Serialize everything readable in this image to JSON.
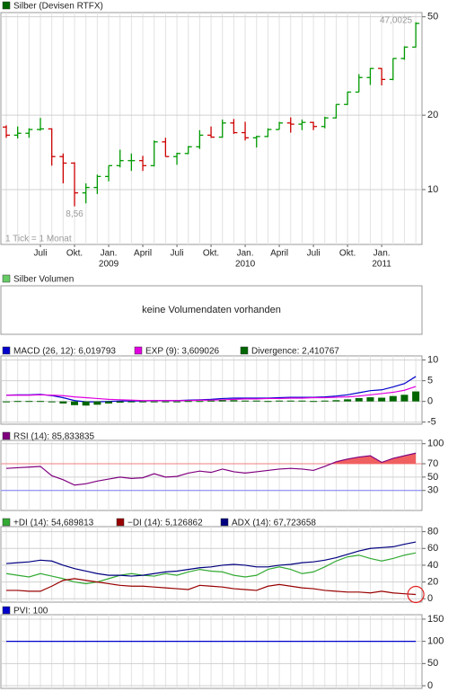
{
  "chart_data": [
    {
      "type": "ohlc",
      "name": "Silber (Devisen RTFX)",
      "color": "#006600",
      "up_color": "#009900",
      "down_color": "#cc0000",
      "categories": [
        null,
        null,
        null,
        "Juli",
        null,
        null,
        "Okt.",
        null,
        null,
        "Jan.",
        null,
        null,
        "April",
        null,
        null,
        "Juli",
        null,
        null,
        "Okt.",
        null,
        null,
        "Jan.",
        null,
        null,
        "April",
        null,
        null,
        "Juli",
        null,
        null,
        "Okt.",
        null,
        null,
        "Jan.",
        null,
        null,
        null
      ],
      "years": [
        null,
        null,
        null,
        null,
        null,
        null,
        null,
        null,
        null,
        "2009",
        null,
        null,
        null,
        null,
        null,
        null,
        null,
        null,
        null,
        null,
        null,
        "2010",
        null,
        null,
        null,
        null,
        null,
        null,
        null,
        null,
        null,
        null,
        null,
        "2011",
        null,
        null,
        null
      ],
      "open": [
        17.9,
        16.6,
        16.9,
        17.5,
        17.6,
        13.6,
        12.8,
        9.7,
        10.2,
        11.3,
        12.5,
        13.1,
        13.1,
        12.5,
        15.6,
        13.6,
        14.0,
        14.9,
        16.6,
        16.3,
        18.6,
        17.0,
        16.2,
        16.4,
        17.5,
        18.6,
        18.4,
        18.7,
        18.0,
        19.5,
        22.1,
        24.8,
        28.4,
        30.9,
        27.9,
        33.9,
        37.7
      ],
      "high": [
        18.2,
        18.0,
        17.7,
        19.5,
        17.7,
        14.0,
        12.9,
        10.6,
        11.5,
        12.5,
        14.5,
        14.0,
        13.7,
        15.8,
        16.2,
        14.1,
        15.0,
        17.4,
        18.0,
        19.2,
        19.3,
        18.8,
        16.5,
        17.7,
        18.8,
        19.6,
        19.2,
        18.8,
        19.7,
        22.1,
        24.9,
        29.3,
        31.0,
        31.0,
        34.0,
        38.0,
        47.5
      ],
      "low": [
        16.2,
        16.1,
        16.2,
        17.3,
        12.5,
        10.6,
        8.56,
        8.8,
        9.6,
        10.8,
        12.3,
        11.9,
        11.9,
        12.4,
        13.6,
        12.6,
        13.9,
        14.6,
        16.2,
        16.2,
        16.8,
        15.8,
        14.8,
        16.3,
        17.5,
        17.0,
        17.4,
        17.4,
        17.7,
        19.4,
        22.0,
        24.8,
        26.5,
        26.4,
        27.7,
        33.5,
        37.6
      ],
      "close": [
        16.6,
        16.9,
        17.5,
        17.6,
        13.6,
        12.8,
        9.7,
        10.2,
        11.3,
        12.5,
        13.1,
        13.1,
        12.5,
        15.6,
        13.6,
        14.0,
        14.9,
        16.6,
        16.3,
        18.6,
        17.0,
        16.2,
        16.4,
        17.5,
        18.6,
        18.4,
        18.7,
        18.0,
        19.5,
        22.1,
        24.8,
        28.4,
        30.9,
        27.9,
        33.9,
        37.7,
        47.0025
      ],
      "log_scale": true,
      "ylim": [
        6,
        52
      ],
      "yticks": [
        10,
        20,
        50
      ],
      "grid": true,
      "high_label": "47,0025",
      "low_label": "8,56",
      "tick_note": "1 Tick = 1 Monat"
    },
    {
      "type": "empty",
      "name": "Silber Volumen",
      "color": "#66cc66",
      "message": "keine Volumendaten vorhanden"
    },
    {
      "type": "line",
      "ylim": [
        -5.5,
        11
      ],
      "yticks": [
        10,
        5,
        0,
        -5
      ],
      "grid": true,
      "series": [
        {
          "name": "MACD (26, 12): 6,019793",
          "color": "#0000cc",
          "values": [
            1.5,
            1.6,
            1.6,
            1.7,
            1.4,
            0.9,
            0.2,
            -0.1,
            -0.1,
            0.0,
            0.1,
            0.1,
            0.1,
            0.2,
            0.2,
            0.2,
            0.3,
            0.4,
            0.5,
            0.7,
            0.8,
            0.8,
            0.8,
            0.8,
            0.9,
            1.0,
            1.0,
            1.0,
            1.1,
            1.3,
            1.6,
            2.1,
            2.6,
            2.8,
            3.5,
            4.3,
            6.019793
          ]
        },
        {
          "name": "EXP (9): 3,609026",
          "color": "#e000e0",
          "values": [
            1.5,
            1.5,
            1.5,
            1.6,
            1.5,
            1.4,
            1.1,
            0.9,
            0.7,
            0.5,
            0.4,
            0.3,
            0.2,
            0.2,
            0.2,
            0.2,
            0.2,
            0.3,
            0.3,
            0.4,
            0.5,
            0.6,
            0.6,
            0.7,
            0.7,
            0.8,
            0.8,
            0.9,
            0.9,
            1.0,
            1.1,
            1.3,
            1.6,
            1.9,
            2.2,
            2.7,
            3.609026
          ]
        },
        {
          "name": "Divergence: 2,410767",
          "color": "#006600",
          "style": "bar",
          "values": [
            0,
            0.1,
            0.1,
            0.1,
            -0.1,
            -0.5,
            -0.9,
            -1.0,
            -0.8,
            -0.5,
            -0.3,
            -0.2,
            -0.1,
            0,
            0,
            0,
            0.1,
            0.1,
            0.2,
            0.3,
            0.3,
            0.2,
            0.2,
            0.1,
            0.2,
            0.2,
            0.2,
            0.1,
            0.2,
            0.3,
            0.5,
            0.8,
            1.0,
            0.9,
            1.3,
            1.6,
            2.410767
          ]
        }
      ]
    },
    {
      "type": "line",
      "ylim": [
        0,
        105
      ],
      "yticks": [
        100,
        70,
        50,
        30
      ],
      "grid": true,
      "reference_lines": [
        {
          "value": 70,
          "color": "#f08080"
        },
        {
          "value": 30,
          "color": "#8080ff"
        }
      ],
      "fill_above_color": "#f06060",
      "series": [
        {
          "name": "RSI (14): 85,833835",
          "color": "#800080",
          "values": [
            63,
            64,
            65,
            66,
            52,
            46,
            38,
            40,
            44,
            47,
            50,
            48,
            49,
            55,
            50,
            51,
            56,
            59,
            57,
            62,
            58,
            56,
            58,
            60,
            62,
            63,
            62,
            60,
            66,
            73,
            77,
            80,
            82,
            72,
            78,
            82,
            85.833835
          ]
        }
      ]
    },
    {
      "type": "line",
      "ylim": [
        -4,
        86
      ],
      "yticks": [
        80,
        60,
        40,
        20,
        0
      ],
      "grid": true,
      "series": [
        {
          "name": "+DI (14): 54,689813",
          "color": "#33aa33",
          "values": [
            30,
            28,
            26,
            30,
            27,
            24,
            20,
            18,
            20,
            24,
            28,
            30,
            28,
            27,
            30,
            28,
            32,
            35,
            33,
            32,
            28,
            26,
            28,
            35,
            38,
            35,
            30,
            32,
            38,
            45,
            50,
            52,
            48,
            45,
            48,
            52,
            54.689813
          ]
        },
        {
          "name": "−DI (14): 5,126862",
          "color": "#990000",
          "values": [
            10,
            10,
            9,
            9,
            15,
            22,
            24,
            22,
            20,
            18,
            16,
            15,
            15,
            14,
            13,
            12,
            11,
            16,
            15,
            14,
            12,
            11,
            10,
            15,
            17,
            15,
            13,
            12,
            10,
            9,
            8,
            8,
            7,
            9,
            7,
            6,
            5.126862
          ]
        },
        {
          "name": "ADX (14): 67,723658",
          "color": "#000080",
          "values": [
            42,
            43,
            44,
            46,
            45,
            40,
            36,
            33,
            30,
            28,
            28,
            27,
            28,
            30,
            32,
            33,
            35,
            37,
            38,
            40,
            41,
            40,
            38,
            38,
            40,
            41,
            43,
            44,
            46,
            49,
            53,
            57,
            60,
            61,
            62,
            65,
            67.723658
          ]
        }
      ]
    },
    {
      "type": "line",
      "ylim": [
        -6,
        160
      ],
      "yticks": [
        150,
        100,
        50,
        0
      ],
      "grid": true,
      "series": [
        {
          "name": "PVI: 100",
          "color": "#0000cc",
          "values": [
            100,
            100,
            100,
            100,
            100,
            100,
            100,
            100,
            100,
            100,
            100,
            100,
            100,
            100,
            100,
            100,
            100,
            100,
            100,
            100,
            100,
            100,
            100,
            100,
            100,
            100,
            100,
            100,
            100,
            100,
            100,
            100,
            100,
            100,
            100,
            100,
            100
          ]
        }
      ]
    }
  ]
}
